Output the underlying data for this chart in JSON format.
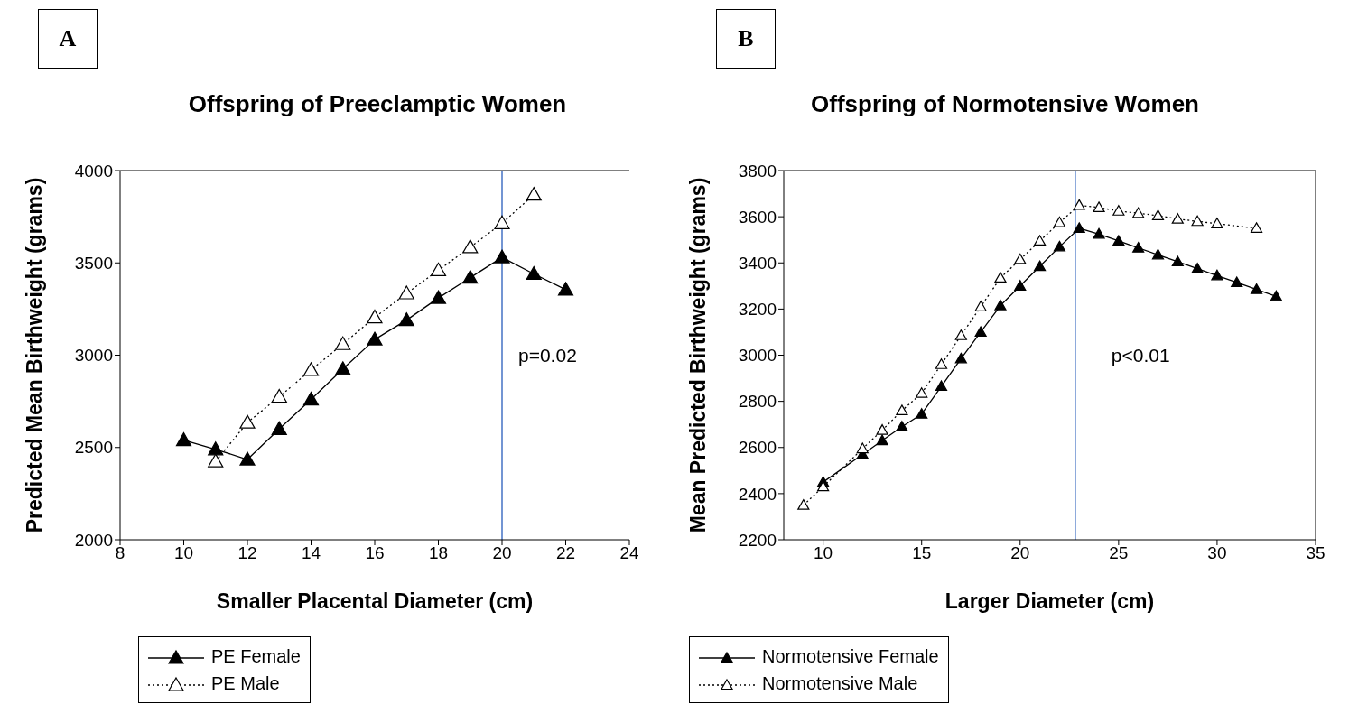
{
  "chart_data": [
    {
      "type": "line",
      "title": "Offspring of Preeclamptic Women",
      "xlabel": "Smaller Placental Diameter (cm)",
      "ylabel": "Predicted Mean Birthweight (grams)",
      "annotations": [
        "A",
        "p=0.02"
      ],
      "xlim": [
        8,
        24
      ],
      "xticks": [
        8,
        10,
        12,
        14,
        16,
        18,
        20,
        22,
        24
      ],
      "ylim": [
        2000,
        4000
      ],
      "yticks": [
        2000,
        2500,
        3000,
        3500,
        4000
      ],
      "grid": false,
      "legend": "bottom",
      "marker": "triangle",
      "series": [
        {
          "name": "PE Female",
          "color": "#000000",
          "line_style": "solid",
          "x": [
            10,
            11,
            12,
            13,
            14,
            15,
            16,
            17,
            18,
            19,
            20,
            21,
            22
          ],
          "values": [
            2540,
            2490,
            2435,
            2600,
            2760,
            2925,
            3085,
            3190,
            3310,
            3420,
            3530,
            3440,
            3355
          ]
        },
        {
          "name": "PE Male",
          "color": "#000000",
          "line_style": "dotted",
          "x": [
            11,
            12,
            13,
            14,
            15,
            16,
            17,
            18,
            19,
            20,
            21
          ],
          "values": [
            2425,
            2635,
            2775,
            2920,
            3060,
            3205,
            3335,
            3460,
            3585,
            3715,
            3870
          ]
        }
      ],
      "ref_lines": [
        {
          "axis": "x",
          "value": 20,
          "color": "#4472c4"
        }
      ]
    },
    {
      "type": "line",
      "title": "Offspring of Normotensive Women",
      "xlabel": "Larger Diameter (cm)",
      "ylabel": "Mean Predicted Birthweight (grams)",
      "annotations": [
        "B",
        "p<0.01"
      ],
      "xlim": [
        8,
        35
      ],
      "xticks": [
        10,
        15,
        20,
        25,
        30,
        35
      ],
      "ylim": [
        2200,
        3800
      ],
      "yticks": [
        2200,
        2400,
        2600,
        2800,
        3000,
        3200,
        3400,
        3600,
        3800
      ],
      "grid": false,
      "legend": "bottom",
      "marker": "triangle",
      "series": [
        {
          "name": "Normotensive Female",
          "color": "#000000",
          "line_style": "solid",
          "x": [
            10,
            12,
            13,
            14,
            15,
            16,
            17,
            18,
            19,
            20,
            21,
            22,
            23,
            24,
            25,
            26,
            27,
            28,
            29,
            30,
            31,
            32,
            33
          ],
          "values": [
            2450,
            2570,
            2630,
            2690,
            2745,
            2865,
            2985,
            3100,
            3215,
            3300,
            3385,
            3470,
            3550,
            3525,
            3495,
            3465,
            3435,
            3405,
            3375,
            3345,
            3315,
            3285,
            3255
          ]
        },
        {
          "name": "Normotensive Male",
          "color": "#000000",
          "line_style": "dotted",
          "x": [
            9,
            10,
            12,
            13,
            14,
            15,
            16,
            17,
            18,
            19,
            20,
            21,
            22,
            23,
            24,
            25,
            26,
            27,
            28,
            29,
            30,
            32
          ],
          "values": [
            2350,
            2430,
            2595,
            2675,
            2760,
            2835,
            2960,
            3085,
            3210,
            3335,
            3415,
            3495,
            3575,
            3650,
            3640,
            3625,
            3615,
            3605,
            3590,
            3580,
            3570,
            3550
          ]
        }
      ],
      "ref_lines": [
        {
          "axis": "x",
          "value": 22.8,
          "color": "#4472c4"
        }
      ]
    }
  ]
}
